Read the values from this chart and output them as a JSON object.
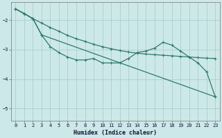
{
  "xlabel": "Humidex (Indice chaleur)",
  "bg_color": "#cce8e8",
  "grid_color": "#aad0d0",
  "line_color": "#2d7a6a",
  "xlim": [
    -0.5,
    23.5
  ],
  "ylim": [
    -5.4,
    -1.4
  ],
  "yticks": [
    -2,
    -3,
    -4,
    -5
  ],
  "xticks": [
    0,
    1,
    2,
    3,
    4,
    5,
    6,
    7,
    8,
    9,
    10,
    11,
    12,
    13,
    14,
    15,
    16,
    17,
    18,
    19,
    20,
    21,
    22,
    23
  ],
  "line1_x": [
    0,
    1,
    2,
    3,
    4,
    5,
    6,
    7,
    8,
    9,
    10,
    11,
    12,
    13,
    14,
    15,
    16,
    17,
    18,
    19,
    20,
    21,
    22,
    23
  ],
  "line1_y": [
    -1.62,
    -1.78,
    -1.95,
    -2.1,
    -2.25,
    -2.38,
    -2.52,
    -2.63,
    -2.72,
    -2.82,
    -2.9,
    -2.97,
    -3.03,
    -3.08,
    -3.12,
    -3.15,
    -3.17,
    -3.19,
    -3.21,
    -3.23,
    -3.25,
    -3.27,
    -3.29,
    -3.3
  ],
  "line2_x": [
    0,
    1,
    2,
    3,
    4,
    5,
    6,
    7,
    8,
    9,
    10,
    11,
    12,
    13,
    14,
    15,
    16,
    17,
    18,
    19,
    20,
    21,
    22,
    23
  ],
  "line2_y": [
    -1.62,
    -1.78,
    -1.95,
    -2.5,
    -2.9,
    -3.1,
    -3.25,
    -3.35,
    -3.35,
    -3.3,
    -3.45,
    -3.45,
    -3.45,
    -3.3,
    -3.1,
    -3.05,
    -2.95,
    -2.75,
    -2.85,
    -3.05,
    -3.25,
    -3.45,
    -3.75,
    -4.6
  ],
  "line3_x": [
    0,
    1,
    2,
    3,
    23
  ],
  "line3_y": [
    -1.62,
    -1.78,
    -1.95,
    -2.5,
    -4.6
  ]
}
